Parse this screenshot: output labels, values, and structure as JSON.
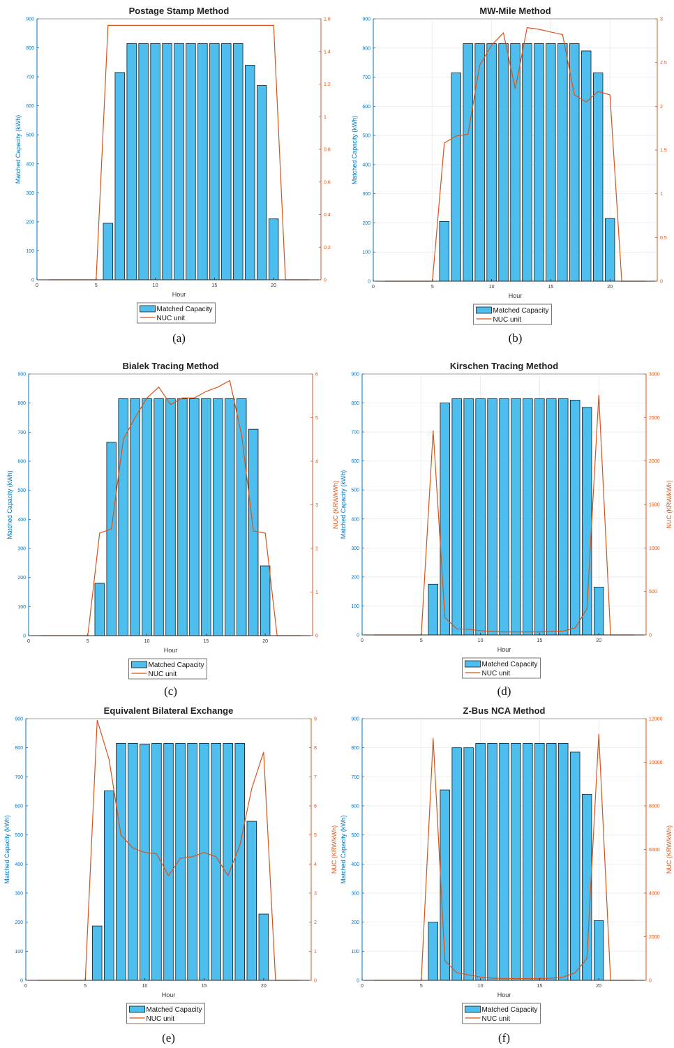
{
  "colors": {
    "bar_fill": "#4dbeee",
    "bar_edge": "#1a1a1a",
    "line": "#d95319",
    "left_axis": "#0072bd",
    "right_axis": "#d95319",
    "grid": "#e6e6e6",
    "hour_axis": "#262626"
  },
  "legend": {
    "bars": "Matched Capacity",
    "line": "NUC unit"
  },
  "chart_data": [
    {
      "type": "bar",
      "caption": "(a)",
      "title": "Postage Stamp Method",
      "xlabel": "Hour",
      "ylabel": "Matched Capacity (kWh)",
      "y2label": "",
      "xlim": [
        0,
        24
      ],
      "xticks": [
        0,
        5,
        10,
        15,
        20
      ],
      "ylim": [
        0,
        900
      ],
      "yticks": [
        0,
        100,
        200,
        300,
        400,
        500,
        600,
        700,
        800,
        900
      ],
      "y2lim": [
        0,
        1.6
      ],
      "y2ticks": [
        0,
        0.2,
        0.4,
        0.6,
        0.8,
        1,
        1.2,
        1.4,
        1.6
      ],
      "grid": false,
      "legend_position": "bottom-center",
      "x": [
        6,
        7,
        8,
        9,
        10,
        11,
        12,
        13,
        14,
        15,
        16,
        17,
        18,
        19,
        20
      ],
      "series": [
        {
          "name": "Matched Capacity",
          "type": "bar",
          "values": [
            195,
            715,
            815,
            815,
            815,
            815,
            815,
            815,
            815,
            815,
            815,
            815,
            740,
            670,
            210
          ]
        },
        {
          "name": "NUC unit",
          "type": "line",
          "axis": "right",
          "x": [
            1,
            2,
            3,
            4,
            5,
            6,
            7,
            8,
            9,
            10,
            11,
            12,
            13,
            14,
            15,
            16,
            17,
            18,
            19,
            20,
            21,
            22,
            23
          ],
          "values": [
            0,
            0,
            0,
            0,
            0,
            1.56,
            1.56,
            1.56,
            1.56,
            1.56,
            1.56,
            1.56,
            1.56,
            1.56,
            1.56,
            1.56,
            1.56,
            1.56,
            1.56,
            1.56,
            0,
            0,
            0
          ]
        }
      ]
    },
    {
      "type": "bar",
      "caption": "(b)",
      "title": "MW-Mile Method",
      "xlabel": "Hour",
      "ylabel": "Matched Capacity (kWh)",
      "y2label": "NUC (KRW/kWh)",
      "xlim": [
        0,
        24
      ],
      "xticks": [
        0,
        5,
        10,
        15,
        20
      ],
      "ylim": [
        0,
        900
      ],
      "yticks": [
        0,
        100,
        200,
        300,
        400,
        500,
        600,
        700,
        800,
        900
      ],
      "y2lim": [
        0,
        3
      ],
      "y2ticks": [
        0,
        0.5,
        1,
        1.5,
        2,
        2.5,
        3
      ],
      "grid": true,
      "legend_position": "bottom-center",
      "x": [
        6,
        7,
        8,
        9,
        10,
        11,
        12,
        13,
        14,
        15,
        16,
        17,
        18,
        19,
        20
      ],
      "series": [
        {
          "name": "Matched Capacity",
          "type": "bar",
          "values": [
            205,
            715,
            815,
            815,
            815,
            815,
            815,
            815,
            815,
            815,
            815,
            815,
            790,
            715,
            215
          ]
        },
        {
          "name": "NUC unit",
          "type": "line",
          "axis": "right",
          "x": [
            1,
            2,
            3,
            4,
            5,
            6,
            7,
            8,
            9,
            10,
            11,
            12,
            13,
            14,
            15,
            16,
            17,
            18,
            19,
            20,
            21,
            22,
            23
          ],
          "values": [
            0,
            0,
            0,
            0,
            0,
            1.58,
            1.66,
            1.68,
            2.47,
            2.7,
            2.84,
            2.2,
            2.9,
            2.88,
            2.85,
            2.82,
            2.13,
            2.05,
            2.17,
            2.13,
            0,
            0,
            0
          ]
        }
      ]
    },
    {
      "type": "bar",
      "caption": "(c)",
      "title": "Bialek Tracing Method",
      "xlabel": "Hour",
      "ylabel": "Matched Capacity (kWh)",
      "y2label": "NUC (KRW/kWh)",
      "xlim": [
        0,
        24
      ],
      "xticks": [
        0,
        5,
        10,
        15,
        20
      ],
      "ylim": [
        0,
        900
      ],
      "yticks": [
        0,
        100,
        200,
        300,
        400,
        500,
        600,
        700,
        800,
        900
      ],
      "y2lim": [
        0,
        6
      ],
      "y2ticks": [
        0,
        1,
        2,
        3,
        4,
        5,
        6
      ],
      "grid": false,
      "legend_position": "bottom-center",
      "x": [
        6,
        7,
        8,
        9,
        10,
        11,
        12,
        13,
        14,
        15,
        16,
        17,
        18,
        19,
        20
      ],
      "series": [
        {
          "name": "Matched Capacity",
          "type": "bar",
          "values": [
            180,
            665,
            815,
            815,
            815,
            815,
            815,
            815,
            815,
            815,
            815,
            815,
            815,
            710,
            240
          ]
        },
        {
          "name": "NUC unit",
          "type": "line",
          "axis": "right",
          "x": [
            1,
            2,
            3,
            4,
            5,
            6,
            7,
            8,
            9,
            10,
            11,
            12,
            13,
            14,
            15,
            16,
            17,
            18,
            19,
            20,
            21,
            22,
            23
          ],
          "values": [
            0,
            0,
            0,
            0,
            0,
            2.35,
            2.45,
            4.5,
            5.0,
            5.45,
            5.7,
            5.3,
            5.45,
            5.45,
            5.6,
            5.7,
            5.85,
            4.6,
            2.4,
            2.35,
            0,
            0,
            0
          ]
        }
      ]
    },
    {
      "type": "bar",
      "caption": "(d)",
      "title": "Kirschen Tracing Method",
      "xlabel": "Hour",
      "ylabel": "Matched Capacity (kWh)",
      "y2label": "NUC (KRW/kWh)",
      "xlim": [
        0,
        24
      ],
      "xticks": [
        0,
        5,
        10,
        15,
        20
      ],
      "ylim": [
        0,
        900
      ],
      "yticks": [
        0,
        100,
        200,
        300,
        400,
        500,
        600,
        700,
        800,
        900
      ],
      "y2lim": [
        0,
        3000
      ],
      "y2ticks": [
        0,
        500,
        1000,
        1500,
        2000,
        2500,
        3000
      ],
      "grid": true,
      "legend_position": "bottom-center",
      "x": [
        6,
        7,
        8,
        9,
        10,
        11,
        12,
        13,
        14,
        15,
        16,
        17,
        18,
        19,
        20
      ],
      "series": [
        {
          "name": "Matched Capacity",
          "type": "bar",
          "values": [
            175,
            800,
            815,
            815,
            815,
            815,
            815,
            815,
            815,
            815,
            815,
            815,
            810,
            785,
            165
          ]
        },
        {
          "name": "NUC unit",
          "type": "line",
          "axis": "right",
          "x": [
            1,
            2,
            3,
            4,
            5,
            6,
            7,
            8,
            9,
            10,
            11,
            12,
            13,
            14,
            15,
            16,
            17,
            18,
            19,
            20,
            21,
            22,
            23
          ],
          "values": [
            0,
            0,
            0,
            0,
            0,
            2350,
            200,
            70,
            65,
            50,
            40,
            35,
            35,
            35,
            35,
            40,
            45,
            80,
            300,
            2760,
            0,
            0,
            0
          ]
        }
      ]
    },
    {
      "type": "bar",
      "caption": "(e)",
      "title": "Equivalent Bilateral Exchange",
      "xlabel": "Hour",
      "ylabel": "Matched Capacity (kWh)",
      "y2label": "NUC (KRW/kWh)",
      "xlim": [
        0,
        24
      ],
      "xticks": [
        0,
        5,
        10,
        15,
        20
      ],
      "ylim": [
        0,
        900
      ],
      "yticks": [
        0,
        100,
        200,
        300,
        400,
        500,
        600,
        700,
        800,
        900
      ],
      "y2lim": [
        0,
        9
      ],
      "y2ticks": [
        0,
        1,
        2,
        3,
        4,
        5,
        6,
        7,
        8,
        9
      ],
      "grid": false,
      "legend_position": "bottom-center",
      "x": [
        6,
        7,
        8,
        9,
        10,
        11,
        12,
        13,
        14,
        15,
        16,
        17,
        18,
        19,
        20
      ],
      "series": [
        {
          "name": "Matched Capacity",
          "type": "bar",
          "values": [
            187,
            652,
            815,
            815,
            813,
            815,
            815,
            815,
            815,
            815,
            815,
            815,
            815,
            547,
            228
          ]
        },
        {
          "name": "NUC unit",
          "type": "line",
          "axis": "right",
          "x": [
            1,
            2,
            3,
            4,
            5,
            6,
            7,
            8,
            9,
            10,
            11,
            12,
            13,
            14,
            15,
            16,
            17,
            18,
            19,
            20,
            21,
            22,
            23
          ],
          "values": [
            0,
            0,
            0,
            0,
            0,
            8.95,
            7.6,
            5.0,
            4.55,
            4.4,
            4.35,
            3.6,
            4.2,
            4.25,
            4.4,
            4.25,
            3.6,
            4.65,
            6.6,
            7.85,
            0,
            0,
            0
          ]
        }
      ]
    },
    {
      "type": "bar",
      "caption": "(f)",
      "title": "Z-Bus NCA Method",
      "xlabel": "Hour",
      "ylabel": "Matched Capacity (kWh)",
      "y2label": "NUC (KRW/kWh)",
      "xlim": [
        0,
        24
      ],
      "xticks": [
        0,
        5,
        10,
        15,
        20
      ],
      "ylim": [
        0,
        900
      ],
      "yticks": [
        0,
        100,
        200,
        300,
        400,
        500,
        600,
        700,
        800,
        900
      ],
      "y2lim": [
        0,
        12000
      ],
      "y2ticks": [
        0,
        2000,
        4000,
        6000,
        8000,
        10000,
        12000
      ],
      "grid": true,
      "legend_position": "bottom-center",
      "x": [
        6,
        7,
        8,
        9,
        10,
        11,
        12,
        13,
        14,
        15,
        16,
        17,
        18,
        19,
        20
      ],
      "series": [
        {
          "name": "Matched Capacity",
          "type": "bar",
          "values": [
            200,
            655,
            800,
            800,
            815,
            815,
            815,
            815,
            815,
            815,
            815,
            815,
            785,
            640,
            205
          ]
        },
        {
          "name": "NUC unit",
          "type": "line",
          "axis": "right",
          "x": [
            1,
            2,
            3,
            4,
            5,
            6,
            7,
            8,
            9,
            10,
            11,
            12,
            13,
            14,
            15,
            16,
            17,
            18,
            19,
            20,
            21,
            22,
            23
          ],
          "values": [
            0,
            0,
            0,
            0,
            0,
            11100,
            900,
            350,
            250,
            150,
            100,
            80,
            80,
            80,
            80,
            100,
            150,
            350,
            1000,
            11300,
            0,
            0,
            0
          ]
        }
      ]
    }
  ]
}
